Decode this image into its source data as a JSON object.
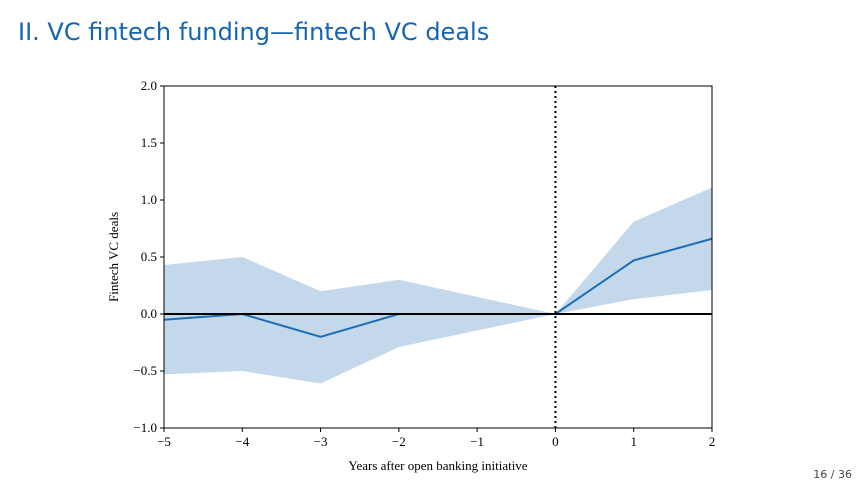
{
  "slide_title": "II. VC fintech funding—fintech VC deals",
  "page_number": "16 / 36",
  "chart_data": {
    "type": "line",
    "xlabel": "Years after open banking initiative",
    "ylabel": "Fintech VC deals",
    "x": [
      -5,
      -4,
      -3,
      -2,
      0,
      1,
      2
    ],
    "series": [
      {
        "color": "#1f6eb4",
        "band_color": "#c4d8ec",
        "values": [
          -0.05,
          0.0,
          -0.2,
          0.0,
          0.0,
          0.47,
          0.66
        ],
        "upper": [
          0.43,
          0.5,
          0.2,
          0.3,
          0.0,
          0.81,
          1.11
        ],
        "lower": [
          -0.53,
          -0.5,
          -0.61,
          -0.29,
          0.0,
          0.13,
          0.21
        ]
      }
    ],
    "xlim": [
      -5,
      2
    ],
    "ylim": [
      -1.0,
      2.0
    ],
    "xticks": [
      {
        "value": -5,
        "label": "−5"
      },
      {
        "value": -4,
        "label": "−4"
      },
      {
        "value": -3,
        "label": "−3"
      },
      {
        "value": -2,
        "label": "−2"
      },
      {
        "value": -1,
        "label": "−1"
      },
      0,
      1,
      2
    ],
    "yticks": [
      {
        "value": -1.0,
        "label": "−1.0"
      },
      {
        "value": -0.5,
        "label": "−0.5"
      },
      {
        "value": 0.0,
        "label": "0.0"
      },
      {
        "value": 0.5,
        "label": "0.5"
      },
      {
        "value": 1.0,
        "label": "1.0"
      },
      {
        "value": 1.5,
        "label": "1.5"
      },
      {
        "value": 2.0,
        "label": "2.0"
      }
    ],
    "hline": 0,
    "vline": 0
  }
}
